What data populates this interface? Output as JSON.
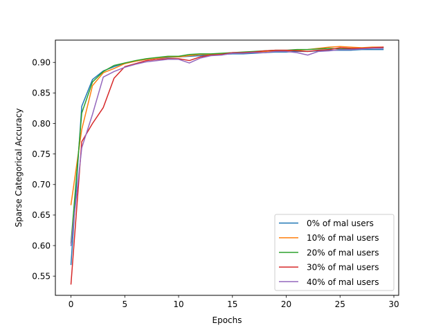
{
  "chart_data": {
    "type": "line",
    "title": "",
    "xlabel": "Epochs",
    "ylabel": "Sparse Categorical Accuracy",
    "xlim": [
      -1.45,
      30.45
    ],
    "ylim": [
      0.5185,
      0.9365
    ],
    "xticks": [
      0,
      5,
      10,
      15,
      20,
      25,
      30
    ],
    "xtick_labels": [
      "0",
      "5",
      "10",
      "15",
      "20",
      "25",
      "30"
    ],
    "yticks": [
      0.55,
      0.6,
      0.65,
      0.7,
      0.75,
      0.8,
      0.85,
      0.9
    ],
    "ytick_labels": [
      "0.55",
      "0.60",
      "0.65",
      "0.70",
      "0.75",
      "0.80",
      "0.85",
      "0.90"
    ],
    "grid": false,
    "legend_position": "lower-right",
    "x": [
      0,
      1,
      2,
      3,
      4,
      5,
      6,
      7,
      8,
      9,
      10,
      11,
      12,
      13,
      14,
      15,
      16,
      17,
      18,
      19,
      20,
      21,
      22,
      23,
      24,
      25,
      26,
      27,
      28,
      29
    ],
    "series": [
      {
        "name": "0% of mal users",
        "color": "#1f77b4",
        "values": [
          0.569,
          0.828,
          0.872,
          0.886,
          0.893,
          0.899,
          0.902,
          0.905,
          0.907,
          0.908,
          0.909,
          0.91,
          0.911,
          0.912,
          0.913,
          0.914,
          0.914,
          0.915,
          0.916,
          0.917,
          0.917,
          0.918,
          0.918,
          0.919,
          0.92,
          0.92,
          0.92,
          0.921,
          0.921,
          0.921
        ]
      },
      {
        "name": "10% of mal users",
        "color": "#ff7f0e",
        "values": [
          0.667,
          0.79,
          0.862,
          0.883,
          0.89,
          0.898,
          0.902,
          0.905,
          0.907,
          0.909,
          0.909,
          0.911,
          0.913,
          0.913,
          0.914,
          0.916,
          0.916,
          0.917,
          0.918,
          0.919,
          0.919,
          0.92,
          0.921,
          0.923,
          0.925,
          0.926,
          0.925,
          0.924,
          0.925,
          0.925
        ]
      },
      {
        "name": "20% of mal users",
        "color": "#2ca02c",
        "values": [
          0.604,
          0.817,
          0.868,
          0.885,
          0.895,
          0.899,
          0.903,
          0.906,
          0.908,
          0.91,
          0.91,
          0.913,
          0.914,
          0.914,
          0.915,
          0.916,
          0.917,
          0.918,
          0.919,
          0.92,
          0.92,
          0.921,
          0.921,
          0.922,
          0.923,
          0.922,
          0.922,
          0.923,
          0.923,
          0.924
        ]
      },
      {
        "name": "30% of mal users",
        "color": "#d62728",
        "values": [
          0.537,
          0.77,
          0.8,
          0.826,
          0.874,
          0.893,
          0.898,
          0.903,
          0.905,
          0.906,
          0.906,
          0.903,
          0.909,
          0.912,
          0.913,
          0.916,
          0.916,
          0.917,
          0.919,
          0.92,
          0.92,
          0.919,
          0.918,
          0.92,
          0.921,
          0.924,
          0.923,
          0.923,
          0.924,
          0.925
        ]
      },
      {
        "name": "40% of mal users",
        "color": "#9467bd",
        "values": [
          0.6,
          0.76,
          0.815,
          0.876,
          0.885,
          0.892,
          0.897,
          0.901,
          0.903,
          0.905,
          0.905,
          0.899,
          0.907,
          0.911,
          0.912,
          0.915,
          0.915,
          0.916,
          0.916,
          0.918,
          0.918,
          0.916,
          0.912,
          0.918,
          0.919,
          0.921,
          0.921,
          0.922,
          0.923,
          0.923
        ]
      }
    ]
  }
}
